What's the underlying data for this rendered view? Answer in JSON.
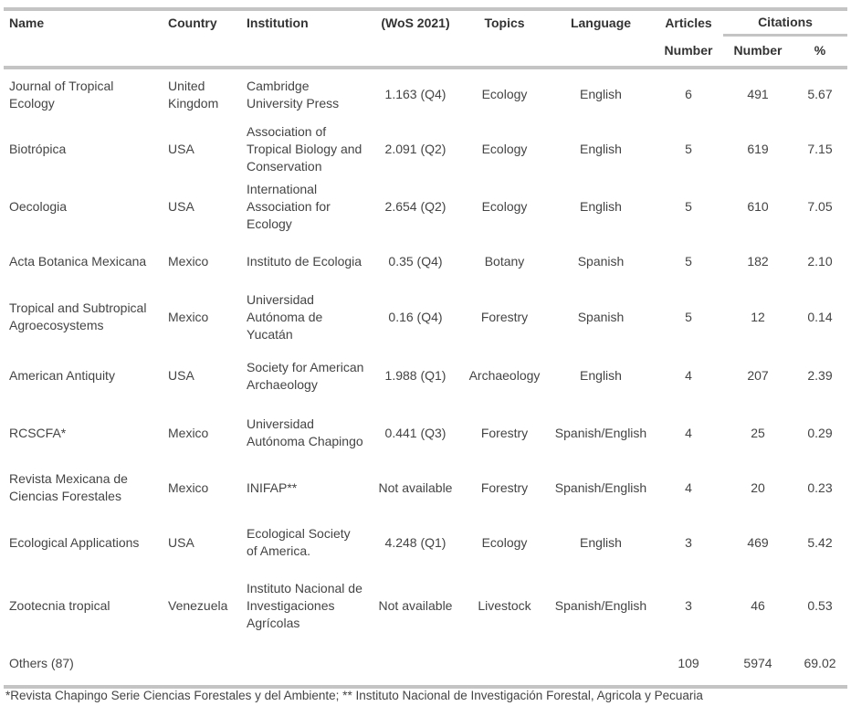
{
  "headers": {
    "name": "Name",
    "country": "Country",
    "institution": "Institution",
    "wos": "(WoS 2021)",
    "topics": "Topics",
    "language": "Language",
    "articles": "Articles",
    "citations": "Citations",
    "articles_number": "Number",
    "citations_number": "Number",
    "citations_pct": "%"
  },
  "rows": [
    {
      "name": "Journal of Tropical Ecology",
      "country": "United Kingdom",
      "institution": "Cambridge University Press",
      "wos": "1.163 (Q4)",
      "topics": "Ecology",
      "language": "English",
      "articles": "6",
      "citations": "491",
      "pct": "5.67"
    },
    {
      "name": "Biotrópica",
      "country": "USA",
      "institution": "Association of Tropical Biology and Conservation",
      "wos": "2.091 (Q2)",
      "topics": "Ecology",
      "language": "English",
      "articles": "5",
      "citations": "619",
      "pct": "7.15"
    },
    {
      "name": "Oecologia",
      "country": "USA",
      "institution": "International Association for Ecology",
      "wos": "2.654 (Q2)",
      "topics": "Ecology",
      "language": "English",
      "articles": "5",
      "citations": "610",
      "pct": "7.05"
    },
    {
      "name": "Acta Botanica Mexicana",
      "country": "Mexico",
      "institution": "Instituto de Ecologia",
      "wos": "0.35 (Q4)",
      "topics": "Botany",
      "language": "Spanish",
      "articles": "5",
      "citations": "182",
      "pct": "2.10"
    },
    {
      "name": "Tropical and Subtropical Agroecosystems",
      "country": "Mexico",
      "institution": "Universidad Autónoma de Yucatán",
      "wos": "0.16 (Q4)",
      "topics": "Forestry",
      "language": "Spanish",
      "articles": "5",
      "citations": "12",
      "pct": "0.14"
    },
    {
      "name": "American Antiquity",
      "country": "USA",
      "institution": "Society for American Archaeology",
      "wos": "1.988 (Q1)",
      "topics": "Archaeology",
      "language": "English",
      "articles": "4",
      "citations": "207",
      "pct": "2.39"
    },
    {
      "name": "RCSCFA*",
      "country": "Mexico",
      "institution": "Universidad Autónoma Chapingo",
      "wos": "0.441 (Q3)",
      "topics": "Forestry",
      "language": "Spanish/English",
      "articles": "4",
      "citations": "25",
      "pct": "0.29"
    },
    {
      "name": "Revista Mexicana de Ciencias Forestales",
      "country": "Mexico",
      "institution": "INIFAP**",
      "wos": "Not available",
      "topics": "Forestry",
      "language": "Spanish/English",
      "articles": "4",
      "citations": "20",
      "pct": "0.23"
    },
    {
      "name": "Ecological Applications",
      "country": "USA",
      "institution": "Ecological Society of America.",
      "wos": "4.248 (Q1)",
      "topics": "Ecology",
      "language": "English",
      "articles": "3",
      "citations": "469",
      "pct": "5.42"
    },
    {
      "name": "Zootecnia tropical",
      "country": "Venezuela",
      "institution": "Instituto Nacional de Investigaciones Agrícolas",
      "wos": "Not available",
      "topics": "Livestock",
      "language": "Spanish/English",
      "articles": "3",
      "citations": "46",
      "pct": "0.53"
    },
    {
      "name": "Others (87)",
      "country": "",
      "institution": "",
      "wos": "",
      "topics": "",
      "language": "",
      "articles": "109",
      "citations": "5974",
      "pct": "69.02"
    }
  ],
  "footnote": "*Revista Chapingo Serie Ciencias Forestales y del Ambiente; ** Instituto Nacional de Investigación Forestal, Agricola y Pecuaria"
}
